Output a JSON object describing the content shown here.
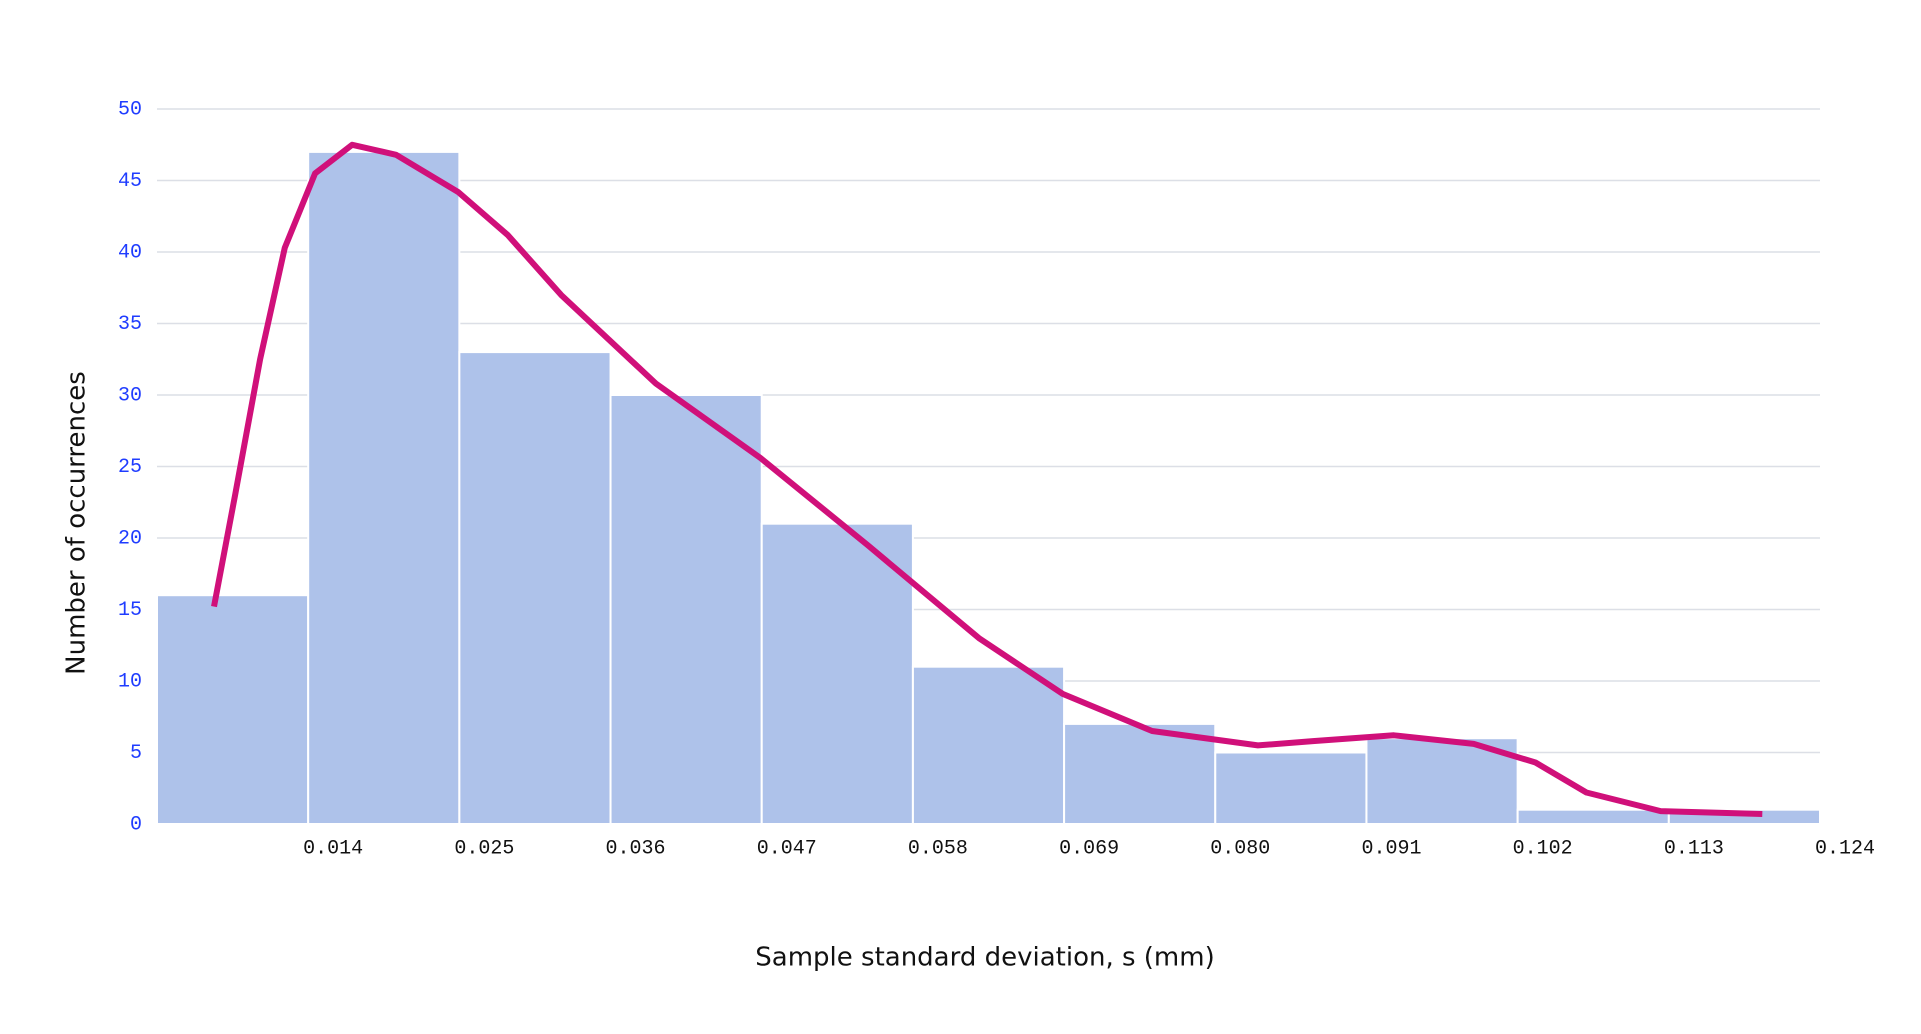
{
  "chart_data": {
    "type": "histogram",
    "x_label": "Sample standard deviation, s (mm)",
    "y_label": "Number  of occurrences",
    "bins": [
      0.003,
      0.014,
      0.025,
      0.036,
      0.047,
      0.058,
      0.069,
      0.08,
      0.091,
      0.102,
      0.113,
      0.124
    ],
    "values": [
      16,
      47,
      33,
      30,
      21,
      11,
      7,
      5,
      6,
      1,
      1
    ],
    "color": "#aec2ea",
    "xlim": [
      0.003,
      0.124
    ],
    "xticks": [
      0.014,
      0.025,
      0.036,
      0.047,
      0.058,
      0.069,
      {
        "value": 0.08,
        "label": "0.080"
      },
      0.091,
      0.102,
      0.113,
      0.124
    ],
    "ylim": [
      0,
      50
    ],
    "yticks": [
      0,
      5,
      10,
      15,
      20,
      25,
      30,
      35,
      40,
      45,
      50
    ],
    "grid": true,
    "curve": {
      "type": "line",
      "color": "#d0107a",
      "x": [
        0.00715,
        0.00868,
        0.0105,
        0.0123,
        0.0145,
        0.0172,
        0.0204,
        0.0249,
        0.0285,
        0.0324,
        0.0393,
        0.0469,
        0.0547,
        0.0628,
        0.0689,
        0.0754,
        0.0831,
        0.0871,
        0.093,
        0.0988,
        0.1033,
        0.107,
        0.1124,
        0.1198
      ],
      "values": [
        15.2,
        23.0,
        32.5,
        40.3,
        45.5,
        47.5,
        46.8,
        44.2,
        41.2,
        37.0,
        30.8,
        25.6,
        19.5,
        13.0,
        9.1,
        6.5,
        5.5,
        5.8,
        6.2,
        5.6,
        4.3,
        2.2,
        0.9,
        0.7
      ]
    }
  }
}
